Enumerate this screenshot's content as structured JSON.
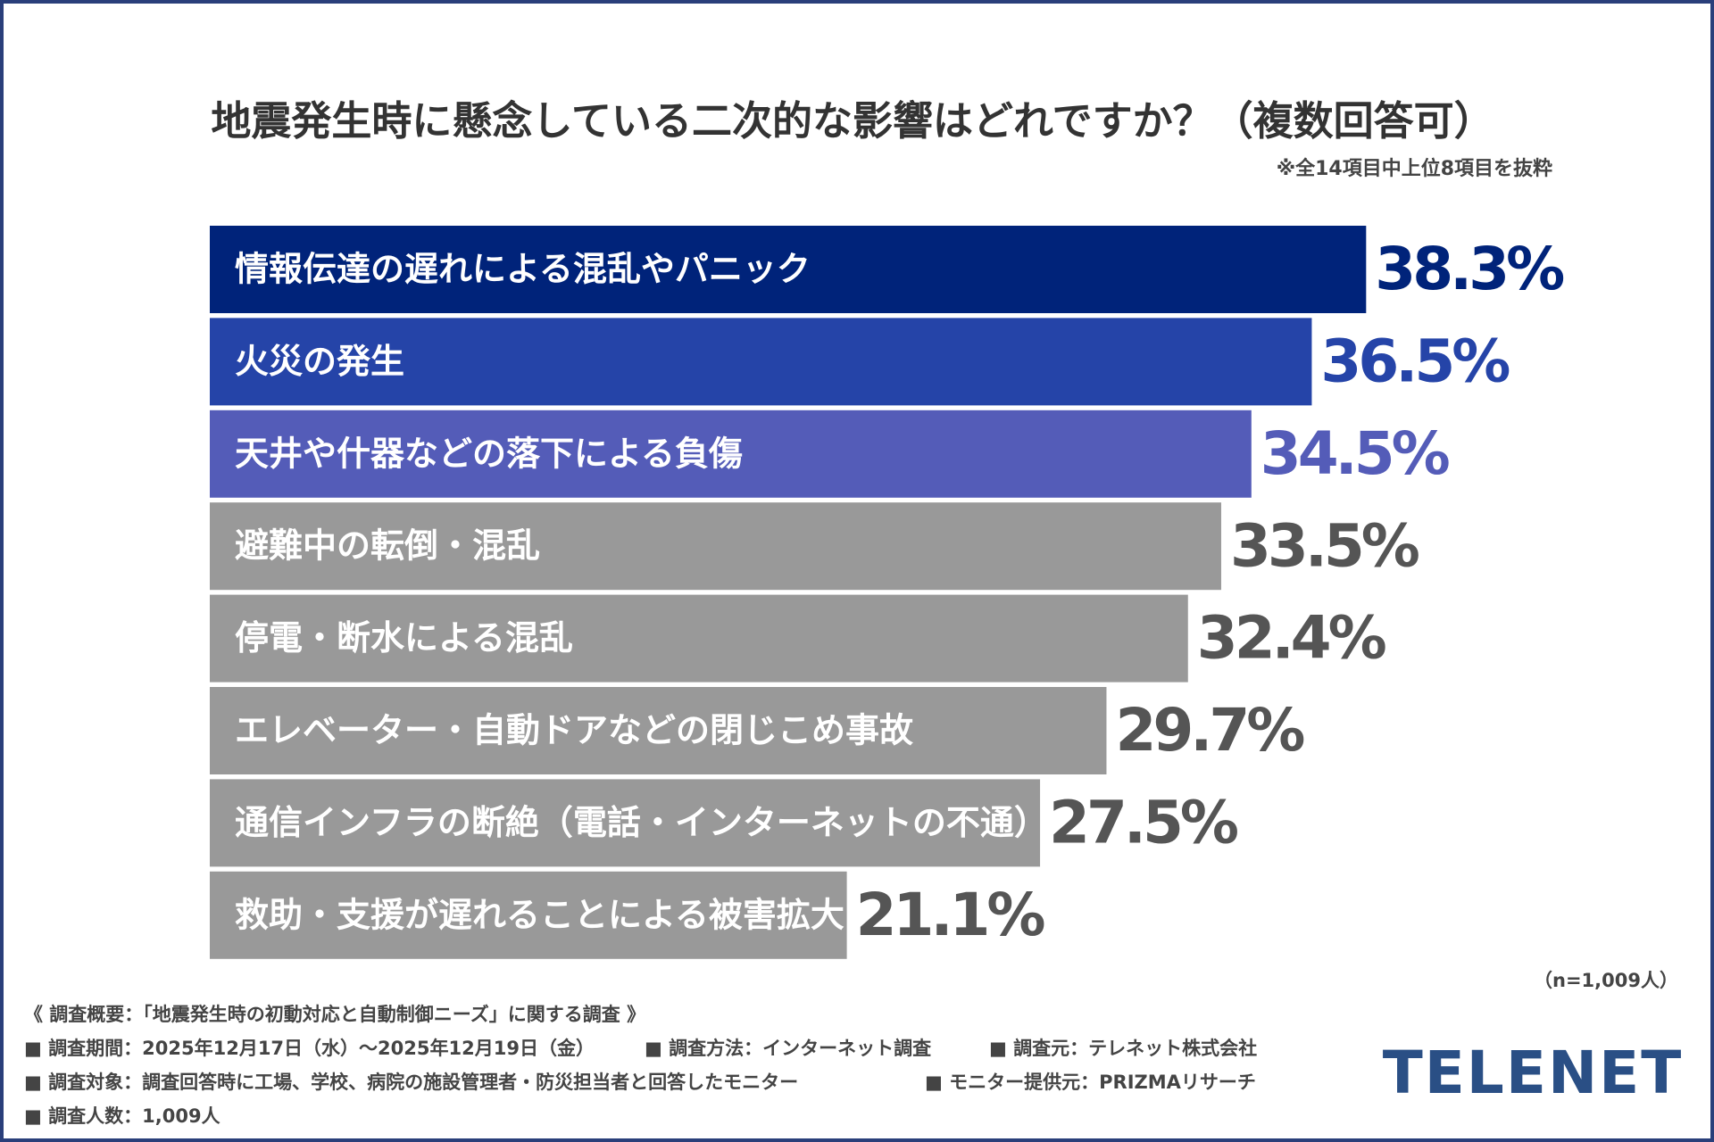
{
  "chart_data": {
    "type": "hbar",
    "title": "地震発生時に懸念している二次的な影響はどれですか？（複数回答可）",
    "note": "※全14項目中上位8項目を抜粋",
    "sample_note": "（n=1,009人）",
    "categories": [
      "情報伝達の遅れによる混乱やパニック",
      "火災の発生",
      "天井や什器などの落下による負傷",
      "避難中の転倒・混乱",
      "停電・断水による混乱",
      "エレベーター・自動ドアなどの閉じこめ事故",
      "通信インフラの断絶（電話・インターネットの不通）",
      "救助・支援が遅れることによる被害拡大"
    ],
    "values": [
      38.3,
      36.5,
      34.5,
      33.5,
      32.4,
      29.7,
      27.5,
      21.1
    ],
    "value_labels": [
      "38.3%",
      "36.5%",
      "34.5%",
      "33.5%",
      "32.4%",
      "29.7%",
      "27.5%",
      "21.1%"
    ],
    "colors": [
      "#00237a",
      "#2544a8",
      "#545cb8",
      "#999999",
      "#999999",
      "#999999",
      "#999999",
      "#999999"
    ],
    "value_label_colors": [
      "#00237a",
      "#2544a8",
      "#545cb8",
      "#555555",
      "#555555",
      "#555555",
      "#555555",
      "#555555"
    ]
  },
  "footer": {
    "heading": "《 調査概要：「地震発生時の初動対応と自動制御ニーズ」に関する調査 》",
    "lines": [
      [
        "■ 調査期間：2025年12月17日（水）～2025年12月19日（金）",
        "■ 調査方法：インターネット調査",
        "■ 調査元：テレネット株式会社"
      ],
      [
        "■ 調査対象：調査回答時に工場、学校、病院の施設管理者・防災担当者と回答したモニター",
        "■ モニター提供元：PRIZMAリサーチ"
      ],
      [
        "■ 調査人数：1,009人"
      ]
    ]
  },
  "logo": "TELENET"
}
